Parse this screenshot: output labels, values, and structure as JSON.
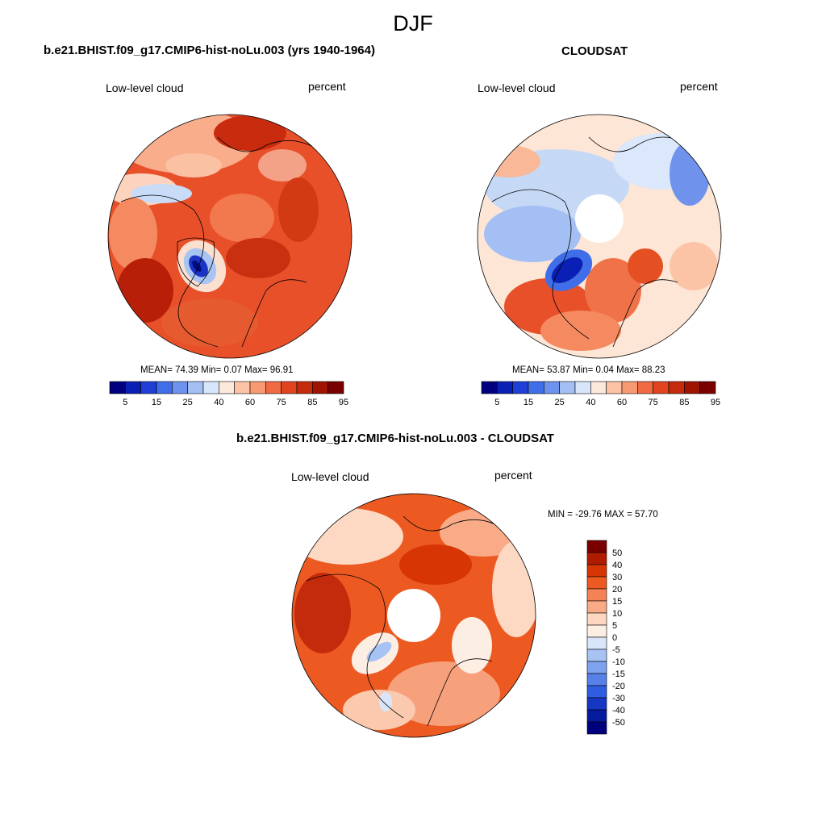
{
  "season_title": "DJF",
  "panels": [
    {
      "title": "b.e21.BHIST.f09_g17.CMIP6-hist-noLu.003 (yrs 1940-1964)",
      "left_label": "Low-level cloud",
      "right_label": "percent",
      "stats": "MEAN=  74.39  Min=   0.07  Max=  96.91"
    },
    {
      "title": "CLOUDSAT",
      "left_label": "Low-level cloud",
      "right_label": "percent",
      "stats": "MEAN=  53.87  Min=   0.04  Max=  88.23"
    },
    {
      "title": "b.e21.BHIST.f09_g17.CMIP6-hist-noLu.003 - CLOUDSAT",
      "left_label": "Low-level cloud",
      "right_label": "percent",
      "stats": "MIN = -29.76 MAX =  57.70"
    }
  ],
  "abs_colorbar": {
    "colors": [
      "#00007f",
      "#0a1fb3",
      "#1f3fd6",
      "#3f6ee8",
      "#6e93ee",
      "#a3bff4",
      "#d8e6fa",
      "#fde8dc",
      "#fcc3a6",
      "#f79a72",
      "#f06a44",
      "#e1441f",
      "#c42a0c",
      "#9e1400",
      "#7a0000"
    ],
    "labels": [
      "5",
      "15",
      "25",
      "40",
      "60",
      "75",
      "85",
      "95"
    ]
  },
  "diff_colorbar": {
    "colors": [
      "#7a0000",
      "#b01c00",
      "#d83505",
      "#ec5a22",
      "#f58255",
      "#f9ab87",
      "#fdd7c0",
      "#fdeee4",
      "#d9e6fa",
      "#a7c3f4",
      "#7ea2ee",
      "#5781e8",
      "#2f5ce0",
      "#1637c4",
      "#061a9e",
      "#00007f"
    ],
    "labels": [
      "50",
      "40",
      "30",
      "20",
      "15",
      "10",
      "5",
      "0",
      "-5",
      "-10",
      "-15",
      "-20",
      "-30",
      "-40",
      "-50"
    ]
  }
}
